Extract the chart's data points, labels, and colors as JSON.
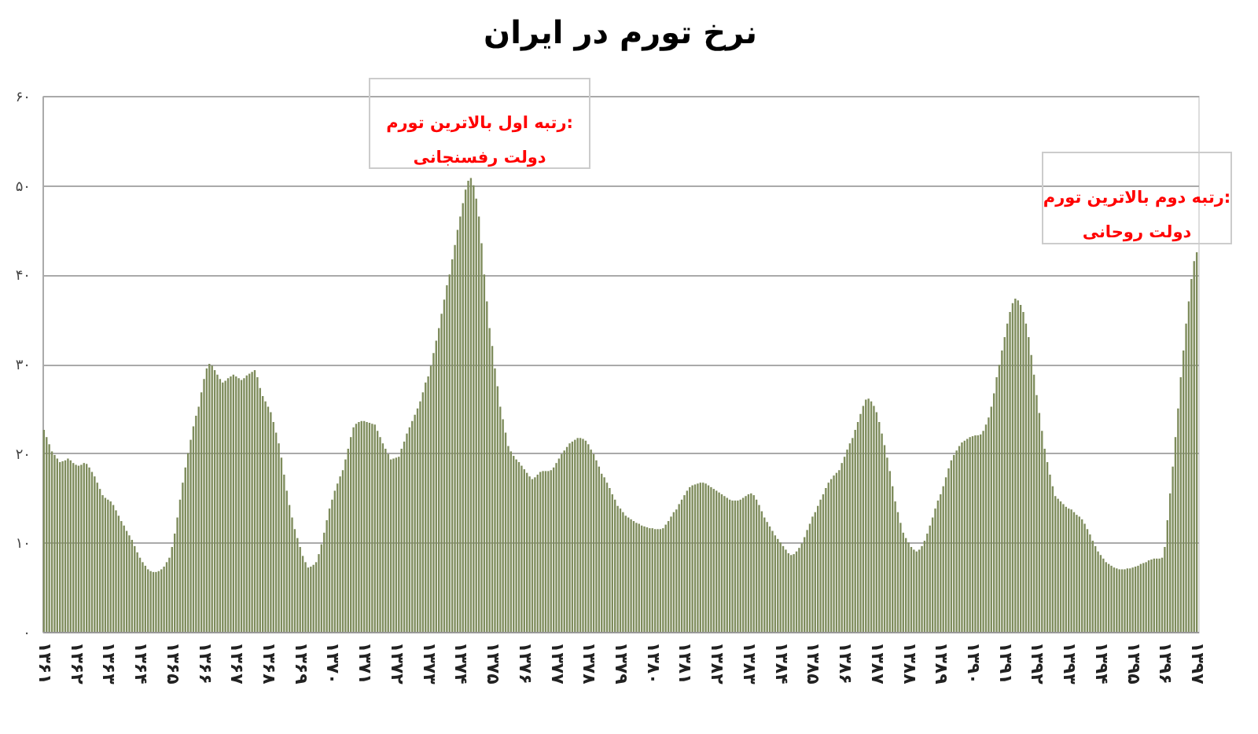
{
  "chart_data": {
    "type": "bar",
    "title": "نرخ تورم در ایران",
    "color": "#7e8c5c",
    "ylim": [
      0,
      60
    ],
    "yticks": [
      {
        "value": 0,
        "label": "۰"
      },
      {
        "value": 10,
        "label": "۱۰"
      },
      {
        "value": 20,
        "label": "۲۰"
      },
      {
        "value": 30,
        "label": "۳۰"
      },
      {
        "value": 40,
        "label": "۴۰"
      },
      {
        "value": 50,
        "label": "۵۰"
      },
      {
        "value": 60,
        "label": "۶۰"
      }
    ],
    "grid": "y",
    "annotations": [
      "رتبه اول بالاترین تورم:\nدولت رفسنجانی",
      "رتبه دوم بالاترین تورم:\nدولت روحانی"
    ],
    "categories": [
      "۱۳۶۱",
      null,
      null,
      null,
      null,
      null,
      null,
      null,
      null,
      null,
      null,
      null,
      "۱۳۶۲",
      null,
      null,
      null,
      null,
      null,
      null,
      null,
      null,
      null,
      null,
      null,
      "۱۳۶۳",
      null,
      null,
      null,
      null,
      null,
      null,
      null,
      null,
      null,
      null,
      null,
      "۱۳۶۴",
      null,
      null,
      null,
      null,
      null,
      null,
      null,
      null,
      null,
      null,
      null,
      "۱۳۶۵",
      null,
      null,
      null,
      null,
      null,
      null,
      null,
      null,
      null,
      null,
      null,
      "۱۳۶۶",
      null,
      null,
      null,
      null,
      null,
      null,
      null,
      null,
      null,
      null,
      null,
      "۱۳۶۷",
      null,
      null,
      null,
      null,
      null,
      null,
      null,
      null,
      null,
      null,
      null,
      "۱۳۶۸",
      null,
      null,
      null,
      null,
      null,
      null,
      null,
      null,
      null,
      null,
      null,
      "۱۳۶۹",
      null,
      null,
      null,
      null,
      null,
      null,
      null,
      null,
      null,
      null,
      null,
      "۱۳۷۰",
      null,
      null,
      null,
      null,
      null,
      null,
      null,
      null,
      null,
      null,
      null,
      "۱۳۷۱",
      null,
      null,
      null,
      null,
      null,
      null,
      null,
      null,
      null,
      null,
      null,
      "۱۳۷۲",
      null,
      null,
      null,
      null,
      null,
      null,
      null,
      null,
      null,
      null,
      null,
      "۱۳۷۳",
      null,
      null,
      null,
      null,
      null,
      null,
      null,
      null,
      null,
      null,
      null,
      "۱۳۷۴",
      null,
      null,
      null,
      null,
      null,
      null,
      null,
      null,
      null,
      null,
      null,
      "۱۳۷۵",
      null,
      null,
      null,
      null,
      null,
      null,
      null,
      null,
      null,
      null,
      null,
      "۱۳۷۶",
      null,
      null,
      null,
      null,
      null,
      null,
      null,
      null,
      null,
      null,
      null,
      "۱۳۷۷",
      null,
      null,
      null,
      null,
      null,
      null,
      null,
      null,
      null,
      null,
      null,
      "۱۳۷۸",
      null,
      null,
      null,
      null,
      null,
      null,
      null,
      null,
      null,
      null,
      null,
      "۱۳۷۹",
      null,
      null,
      null,
      null,
      null,
      null,
      null,
      null,
      null,
      null,
      null,
      "۱۳۸۰",
      null,
      null,
      null,
      null,
      null,
      null,
      null,
      null,
      null,
      null,
      null,
      "۱۳۸۱",
      null,
      null,
      null,
      null,
      null,
      null,
      null,
      null,
      null,
      null,
      null,
      "۱۳۸۲",
      null,
      null,
      null,
      null,
      null,
      null,
      null,
      null,
      null,
      null,
      null,
      "۱۳۸۳",
      null,
      null,
      null,
      null,
      null,
      null,
      null,
      null,
      null,
      null,
      null,
      "۱۳۸۴",
      null,
      null,
      null,
      null,
      null,
      null,
      null,
      null,
      null,
      null,
      null,
      "۱۳۸۵",
      null,
      null,
      null,
      null,
      null,
      null,
      null,
      null,
      null,
      null,
      null,
      "۱۳۸۶",
      null,
      null,
      null,
      null,
      null,
      null,
      null,
      null,
      null,
      null,
      null,
      "۱۳۸۷",
      null,
      null,
      null,
      null,
      null,
      null,
      null,
      null,
      null,
      null,
      null,
      "۱۳۸۸",
      null,
      null,
      null,
      null,
      null,
      null,
      null,
      null,
      null,
      null,
      null,
      "۱۳۸۹",
      null,
      null,
      null,
      null,
      null,
      null,
      null,
      null,
      null,
      null,
      null,
      "۱۳۹۰",
      null,
      null,
      null,
      null,
      null,
      null,
      null,
      null,
      null,
      null,
      null,
      "۱۳۹۱",
      null,
      null,
      null,
      null,
      null,
      null,
      null,
      null,
      null,
      null,
      null,
      "۱۳۹۲",
      null,
      null,
      null,
      null,
      null,
      null,
      null,
      null,
      null,
      null,
      null,
      "۱۳۹۳",
      null,
      null,
      null,
      null,
      null,
      null,
      null,
      null,
      null,
      null,
      null,
      "۱۳۹۴",
      null,
      null,
      null,
      null,
      null,
      null,
      null,
      null,
      null,
      null,
      null,
      "۱۳۹۵",
      null,
      null,
      null,
      null,
      null,
      null,
      null,
      null,
      null,
      null,
      null,
      "۱۳۹۶",
      null,
      null,
      null,
      null,
      null,
      null,
      null,
      null,
      null,
      null,
      null,
      "۱۳۹۷"
    ],
    "values": [
      22.6,
      21.8,
      21,
      20.2,
      19.8,
      19.4,
      19,
      19.1,
      19.2,
      19.4,
      19.2,
      18.9,
      18.7,
      18.6,
      18.7,
      18.9,
      18.8,
      18.4,
      17.9,
      17.4,
      16.7,
      16,
      15.3,
      15,
      14.8,
      14.6,
      14.2,
      13.6,
      13,
      12.4,
      11.9,
      11.3,
      10.8,
      10.3,
      9.6,
      8.9,
      8.3,
      7.8,
      7.4,
      7,
      6.8,
      6.7,
      6.7,
      6.8,
      7,
      7.3,
      7.8,
      8.3,
      9.5,
      11,
      12.8,
      14.8,
      16.7,
      18.4,
      20,
      21.5,
      23,
      24.2,
      25.2,
      26.8,
      28.3,
      29.5,
      30,
      29.8,
      29.3,
      28.8,
      28.3,
      27.9,
      28.1,
      28.4,
      28.6,
      28.8,
      28.6,
      28.4,
      28.2,
      28.4,
      28.7,
      28.9,
      29.1,
      29.3,
      28.5,
      27.3,
      26.4,
      25.8,
      25.2,
      24.6,
      23.5,
      22.3,
      21.1,
      19.5,
      17.6,
      15.8,
      14.2,
      12.8,
      11.5,
      10.5,
      9.5,
      8.5,
      7.8,
      7.2,
      7.3,
      7.5,
      7.8,
      8.7,
      9.8,
      11.1,
      12.5,
      13.8,
      14.8,
      15.8,
      16.6,
      17.4,
      18.1,
      19.3,
      20.5,
      21.8,
      22.9,
      23.3,
      23.5,
      23.6,
      23.6,
      23.5,
      23.4,
      23.3,
      23.2,
      22.5,
      21.8,
      21.1,
      20.5,
      19.9,
      19.3,
      19.4,
      19.5,
      19.6,
      20.5,
      21.3,
      22.2,
      22.9,
      23.6,
      24.3,
      25,
      25.8,
      26.8,
      27.9,
      28.6,
      29.8,
      31.2,
      32.6,
      34,
      35.6,
      37.2,
      38.8,
      40,
      41.7,
      43.3,
      45,
      46.5,
      48,
      49.5,
      50.5,
      50.8,
      50,
      48.5,
      46.5,
      43.5,
      40,
      37,
      34,
      32,
      29.5,
      27.5,
      25.2,
      23.8,
      22.3,
      20.8,
      20.2,
      19.7,
      19.3,
      19,
      18.6,
      18.2,
      17.8,
      17.4,
      17.1,
      17.3,
      17.6,
      17.9,
      18,
      18,
      18,
      18.1,
      18.4,
      18.9,
      19.4,
      19.9,
      20.3,
      20.7,
      21.1,
      21.3,
      21.5,
      21.7,
      21.7,
      21.6,
      21.4,
      21,
      20.4,
      19.9,
      19.2,
      18.5,
      17.7,
      17.3,
      16.7,
      16.1,
      15.4,
      14.8,
      14.1,
      13.8,
      13.4,
      13,
      12.8,
      12.6,
      12.4,
      12.2,
      12.1,
      11.9,
      11.8,
      11.7,
      11.6,
      11.6,
      11.5,
      11.5,
      11.5,
      11.6,
      12,
      12.4,
      12.9,
      13.4,
      13.7,
      14.3,
      14.8,
      15.3,
      15.8,
      16.2,
      16.4,
      16.5,
      16.6,
      16.7,
      16.7,
      16.6,
      16.4,
      16.2,
      16,
      15.8,
      15.6,
      15.4,
      15.2,
      15,
      14.8,
      14.7,
      14.7,
      14.7,
      14.8,
      15,
      15.2,
      15.4,
      15.5,
      15.3,
      14.8,
      14.2,
      13.5,
      12.8,
      12.3,
      11.8,
      11.3,
      10.8,
      10.4,
      10,
      9.6,
      9.2,
      8.8,
      8.6,
      8.7,
      9,
      9.4,
      9.9,
      10.6,
      11.4,
      12.1,
      12.9,
      13.4,
      14.1,
      14.8,
      15.4,
      16.1,
      16.7,
      17.1,
      17.5,
      17.8,
      18.1,
      18.9,
      19.6,
      20.4,
      21.1,
      21.7,
      22.6,
      23.5,
      24.4,
      25.3,
      26,
      26.1,
      25.8,
      25.3,
      24.6,
      23.5,
      22.2,
      20.9,
      19.5,
      18,
      16.3,
      14.6,
      13.4,
      12.2,
      11.1,
      10.5,
      10,
      9.5,
      9.2,
      9,
      9.2,
      9.6,
      10.2,
      11,
      11.9,
      12.8,
      13.8,
      14.7,
      15.4,
      16.3,
      17.3,
      18.3,
      19.2,
      19.8,
      20.3,
      20.8,
      21.2,
      21.4,
      21.6,
      21.8,
      21.9,
      22,
      22,
      22.1,
      22.5,
      23.2,
      24,
      25.2,
      26.7,
      28.5,
      29.9,
      31.5,
      33,
      34.5,
      35.8,
      36.8,
      37.3,
      37.1,
      36.6,
      35.8,
      34.5,
      33,
      31,
      28.8,
      26.5,
      24.5,
      22.5,
      20.5,
      19,
      17.6,
      16.3,
      15.2,
      14.9,
      14.6,
      14.3,
      14,
      13.8,
      13.7,
      13.4,
      13.1,
      12.9,
      12.6,
      12.1,
      11.5,
      10.9,
      10.2,
      9.6,
      9,
      8.6,
      8.2,
      7.8,
      7.6,
      7.4,
      7.2,
      7.1,
      7,
      7,
      7,
      7.1,
      7.1,
      7.2,
      7.3,
      7.4,
      7.6,
      7.7,
      7.8,
      8,
      8.1,
      8.2,
      8.2,
      8.2,
      8.3,
      9.5,
      12.5,
      15.5,
      18.5,
      21.8,
      25,
      28.5,
      31.5,
      34.5,
      37,
      39.5,
      41.5,
      42.5
    ]
  }
}
